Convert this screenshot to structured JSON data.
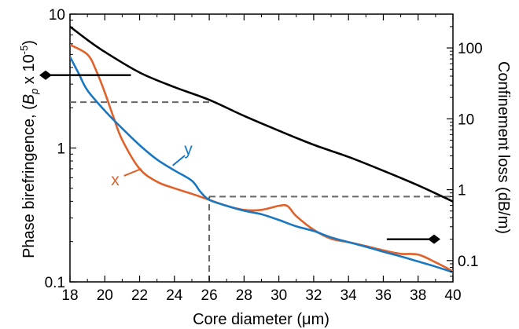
{
  "chart_data": {
    "type": "line",
    "xlabel": "Core diameter (μm)",
    "ylabel_left": {
      "main": "Phase birefringence, (",
      "sym": "B",
      "sub": "p",
      "post": " x 10",
      "sup": "-5",
      "close": ")"
    },
    "ylabel_right": "Confinement loss (dB/m)",
    "xlim": [
      18,
      40
    ],
    "ylim_left": [
      0.1,
      10
    ],
    "ylim_right": [
      0.05,
      300
    ],
    "yscale_left": "log",
    "yscale_right": "log",
    "xticks": [
      18,
      20,
      22,
      24,
      26,
      28,
      30,
      32,
      34,
      36,
      38,
      40
    ],
    "yticks_left": [
      {
        "v": 0.1,
        "label": "0.1"
      },
      {
        "v": 1,
        "label": "1"
      },
      {
        "v": 10,
        "label": "10"
      }
    ],
    "yticks_right": [
      {
        "v": 0.1,
        "label": "0.1"
      },
      {
        "v": 1,
        "label": "1"
      },
      {
        "v": 10,
        "label": "10"
      },
      {
        "v": 100,
        "label": "100"
      }
    ],
    "colors": {
      "x": "#e0612a",
      "y": "#1a78c2",
      "loss": "#000000",
      "guide": "#666666"
    },
    "series": [
      {
        "name": "x",
        "axis": "left",
        "x": [
          18,
          19,
          19.5,
          20,
          20.5,
          21,
          22,
          23,
          24,
          25,
          26,
          27,
          28,
          29,
          30,
          30.5,
          31,
          32,
          33,
          34,
          35,
          36,
          37,
          38,
          39,
          40
        ],
        "y": [
          5.9,
          5.0,
          3.8,
          2.6,
          1.7,
          1.15,
          0.7,
          0.56,
          0.5,
          0.455,
          0.41,
          0.37,
          0.345,
          0.345,
          0.37,
          0.368,
          0.31,
          0.245,
          0.21,
          0.198,
          0.185,
          0.172,
          0.162,
          0.16,
          0.14,
          0.12
        ]
      },
      {
        "name": "y",
        "axis": "left",
        "x": [
          18,
          18.5,
          19,
          20,
          21,
          22,
          23,
          24,
          25,
          25.5,
          26,
          27,
          28,
          29,
          30,
          31,
          32,
          33,
          34,
          35,
          36,
          37,
          38,
          39,
          40
        ],
        "y": [
          4.8,
          3.6,
          2.7,
          1.9,
          1.4,
          1.05,
          0.82,
          0.68,
          0.57,
          0.47,
          0.41,
          0.37,
          0.34,
          0.32,
          0.29,
          0.26,
          0.24,
          0.215,
          0.198,
          0.183,
          0.168,
          0.155,
          0.142,
          0.13,
          0.118
        ]
      },
      {
        "name": "confinement loss",
        "axis": "right",
        "x": [
          18,
          19,
          20,
          22,
          24,
          26,
          28,
          30,
          32,
          34,
          36,
          38,
          40
        ],
        "y": [
          200,
          130,
          88,
          45,
          28,
          18.5,
          11,
          6.8,
          4.3,
          2.9,
          1.85,
          1.15,
          0.68
        ]
      }
    ],
    "annotations": {
      "series_labels": [
        {
          "text": "x",
          "series": "x",
          "color_key": "x",
          "x": 20.6,
          "y": 0.58,
          "leader": [
            [
              21.1,
              0.62
            ],
            [
              22.1,
              0.7
            ]
          ]
        },
        {
          "text": "y",
          "series": "y",
          "color_key": "y",
          "x": 24.8,
          "y": 0.98,
          "leader": [
            [
              24.6,
              0.88
            ],
            [
              23.9,
              0.74
            ]
          ]
        }
      ],
      "guides": [
        {
          "from": [
            18,
            2.2
          ],
          "to": [
            26,
            2.2
          ],
          "axis": "left"
        },
        {
          "from": [
            26,
            0.1
          ],
          "to": [
            26,
            0.41
          ],
          "axis": "left"
        },
        {
          "from_x": 26,
          "to_x": 40,
          "y": 0.8,
          "axis": "right",
          "y_start_left": 0.41
        }
      ],
      "axis_arrows": [
        {
          "points_to": "left",
          "x": [
            21.5,
            18
          ],
          "y": 3.5,
          "axis": "left"
        },
        {
          "points_to": "right",
          "x": [
            36.2,
            40
          ],
          "y": 0.2,
          "axis": "right"
        }
      ]
    }
  }
}
